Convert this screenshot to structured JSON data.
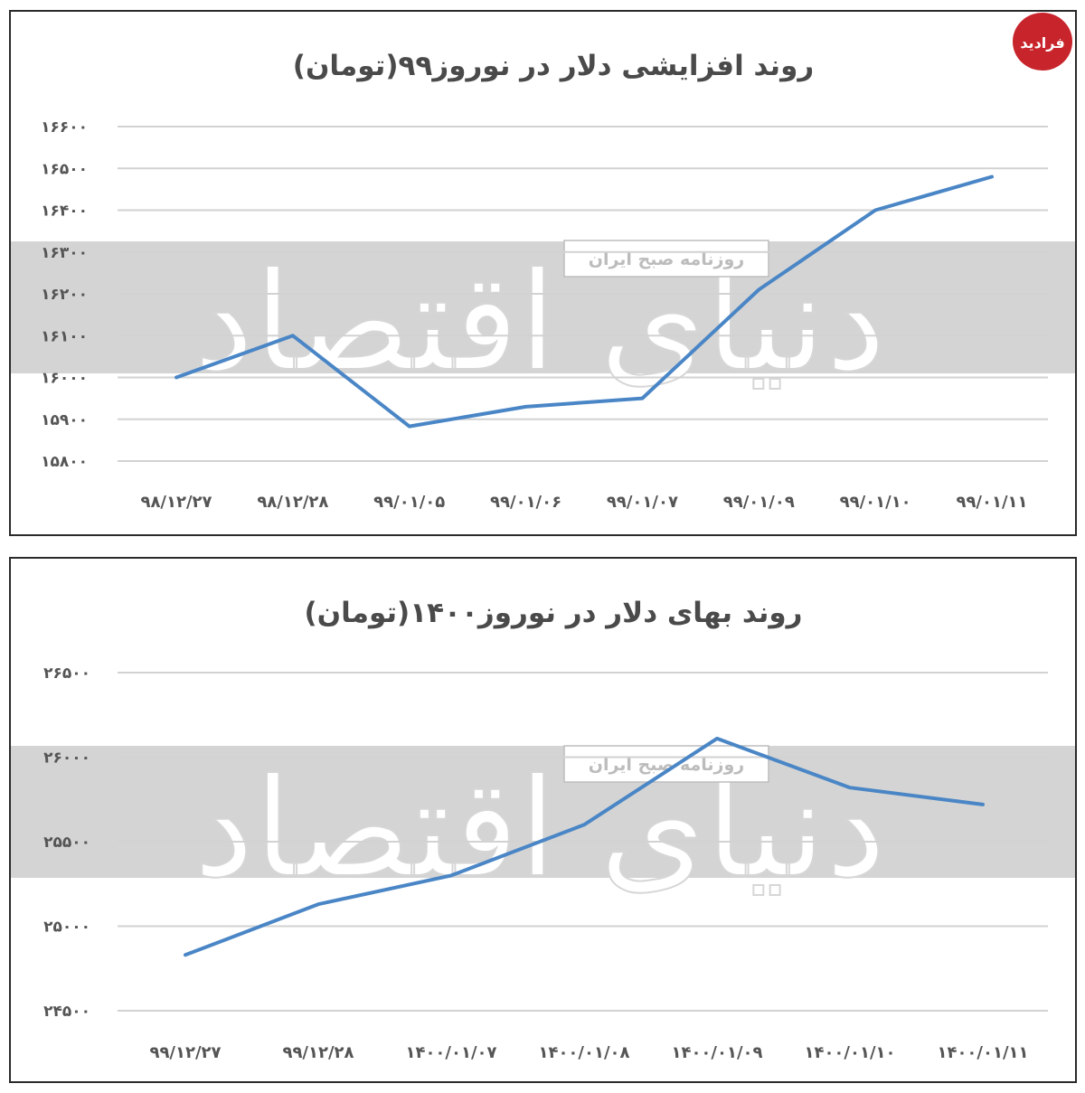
{
  "logo": {
    "text": "فرادید",
    "color": "#c8242b"
  },
  "chart_data": [
    {
      "type": "line",
      "title": "روند افزایشی دلار در نوروز۹۹(تومان)",
      "categories": [
        "۹۸/۱۲/۲۷",
        "۹۸/۱۲/۲۸",
        "۹۹/۰۱/۰۵",
        "۹۹/۰۱/۰۶",
        "۹۹/۰۱/۰۷",
        "۹۹/۰۱/۰۹",
        "۹۹/۰۱/۱۰",
        "۹۹/۰۱/۱۱"
      ],
      "values": [
        16000,
        16100,
        15883,
        15930,
        15950,
        16210,
        16400,
        16480
      ],
      "yticks": [
        15800,
        15900,
        16000,
        16100,
        16200,
        16300,
        16400,
        16500,
        16600
      ],
      "ytick_labels": [
        "۱۵۸۰۰",
        "۱۵۹۰۰",
        "۱۶۰۰۰",
        "۱۶۱۰۰",
        "۱۶۲۰۰",
        "۱۶۳۰۰",
        "۱۶۴۰۰",
        "۱۶۵۰۰",
        "۱۶۶۰۰"
      ],
      "ylim": [
        15800,
        16600
      ],
      "grid": true,
      "line_color": "#4a86c6"
    },
    {
      "type": "line",
      "title": "روند بهای دلار در نوروز۱۴۰۰(تومان)",
      "categories": [
        "۹۹/۱۲/۲۷",
        "۹۹/۱۲/۲۸",
        "۱۴۰۰/۰۱/۰۷",
        "۱۴۰۰/۰۱/۰۸",
        "۱۴۰۰/۰۱/۰۹",
        "۱۴۰۰/۰۱/۱۰",
        "۱۴۰۰/۰۱/۱۱"
      ],
      "values": [
        24830,
        25130,
        25300,
        25600,
        26110,
        25820,
        25720
      ],
      "yticks": [
        24500,
        25000,
        25500,
        26000,
        26500
      ],
      "ytick_labels": [
        "۲۴۵۰۰",
        "۲۵۰۰۰",
        "۲۵۵۰۰",
        "۲۶۰۰۰",
        "۲۶۵۰۰"
      ],
      "ylim": [
        24500,
        26500
      ],
      "grid": true,
      "line_color": "#4a86c6"
    }
  ],
  "watermark": {
    "main": "دنیای اقتصاد",
    "sub": "روزنامه صبح ایران"
  }
}
